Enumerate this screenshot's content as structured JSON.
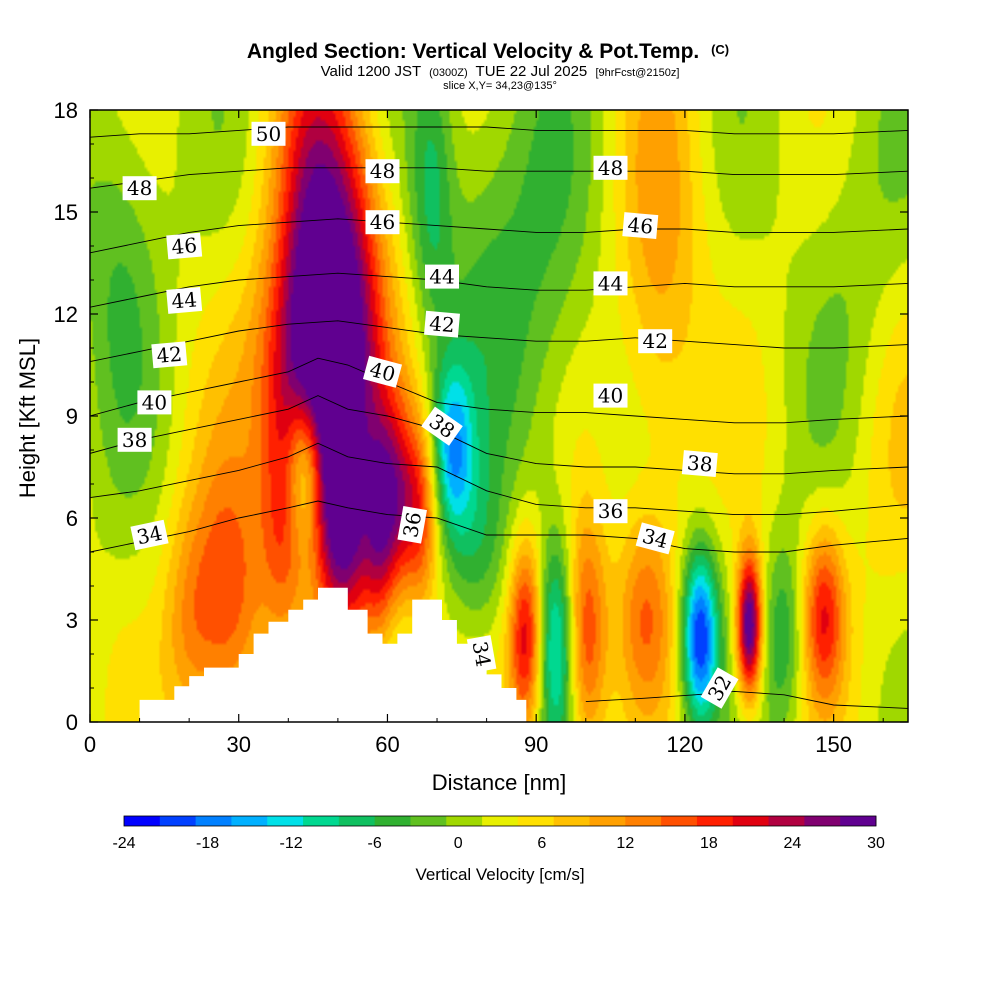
{
  "title": {
    "main": "Angled Section: Vertical Velocity & Pot.Temp.",
    "main_suffix": "(C)",
    "valid_prefix": "Valid 1200 JST",
    "valid_zulu": "(0300Z)",
    "valid_date": "TUE 22 Jul 2025",
    "forecast": "[9hrFcst@2150z]",
    "slice": "slice X,Y= 34,23@135°"
  },
  "chart_data": {
    "type": "heatmap",
    "xlabel": "Distance [nm]",
    "ylabel": "Height [Kft MSL]",
    "xlim": [
      0,
      165
    ],
    "ylim": [
      0,
      18
    ],
    "x_ticks": [
      0,
      30,
      60,
      90,
      120,
      150
    ],
    "y_ticks": [
      0,
      3,
      6,
      9,
      12,
      15,
      18
    ],
    "colorbar": {
      "title": "Vertical Velocity [cm/s]",
      "range": [
        -24,
        30
      ],
      "tick_values": [
        -24,
        -18,
        -12,
        -6,
        0,
        6,
        12,
        18,
        24,
        30
      ],
      "colors": [
        "#0000ff",
        "#0040ff",
        "#0080ff",
        "#00b0ff",
        "#00e0e8",
        "#00d890",
        "#10c060",
        "#30b030",
        "#60c020",
        "#a0d800",
        "#e8f000",
        "#ffe000",
        "#ffc000",
        "#ffa000",
        "#ff8000",
        "#ff5000",
        "#ff2000",
        "#e00010",
        "#b00040",
        "#800070",
        "#600090"
      ]
    },
    "terrain_profile": [
      [
        10,
        0
      ],
      [
        10,
        0.65
      ],
      [
        17,
        0.65
      ],
      [
        17,
        1.05
      ],
      [
        20,
        1.05
      ],
      [
        20,
        1.35
      ],
      [
        23,
        1.35
      ],
      [
        23,
        1.6
      ],
      [
        30,
        1.6
      ],
      [
        30,
        2.0
      ],
      [
        33,
        2.0
      ],
      [
        33,
        2.6
      ],
      [
        36,
        2.6
      ],
      [
        36,
        2.95
      ],
      [
        40,
        2.95
      ],
      [
        40,
        3.3
      ],
      [
        43,
        3.3
      ],
      [
        43,
        3.6
      ],
      [
        46,
        3.6
      ],
      [
        46,
        3.95
      ],
      [
        52,
        3.95
      ],
      [
        52,
        3.3
      ],
      [
        56,
        3.3
      ],
      [
        56,
        2.6
      ],
      [
        59,
        2.6
      ],
      [
        59,
        2.3
      ],
      [
        62,
        2.3
      ],
      [
        62,
        2.6
      ],
      [
        65,
        2.6
      ],
      [
        65,
        3.6
      ],
      [
        71,
        3.6
      ],
      [
        71,
        3.0
      ],
      [
        74,
        3.0
      ],
      [
        74,
        2.3
      ],
      [
        77,
        2.3
      ],
      [
        77,
        1.7
      ],
      [
        80,
        1.7
      ],
      [
        80,
        1.4
      ],
      [
        83,
        1.4
      ],
      [
        83,
        1.0
      ],
      [
        86,
        1.0
      ],
      [
        86,
        0.65
      ],
      [
        88,
        0.65
      ],
      [
        88,
        0
      ]
    ],
    "velocity_cells": [
      {
        "x": 46,
        "y": 13.5,
        "sx": 6,
        "sy": 4.5,
        "v": 24
      },
      {
        "x": 44,
        "y": 10.5,
        "sx": 8,
        "sy": 2.5,
        "v": 14
      },
      {
        "x": 54,
        "y": 12.5,
        "sx": 5,
        "sy": 3.5,
        "v": 12
      },
      {
        "x": 39,
        "y": 6,
        "sx": 3.5,
        "sy": 2.5,
        "v": 12
      },
      {
        "x": 49,
        "y": 6,
        "sx": 2.8,
        "sy": 2.5,
        "v": 18
      },
      {
        "x": 53,
        "y": 5.5,
        "sx": 2.5,
        "sy": 2.5,
        "v": 14
      },
      {
        "x": 58,
        "y": 5.5,
        "sx": 2.5,
        "sy": 2.5,
        "v": 16
      },
      {
        "x": 62,
        "y": 6.5,
        "sx": 3,
        "sy": 2,
        "v": 16
      },
      {
        "x": 67,
        "y": 6,
        "sx": 2.5,
        "sy": 2,
        "v": 12
      },
      {
        "x": 28,
        "y": 3.5,
        "sx": 5,
        "sy": 3,
        "v": 14
      },
      {
        "x": 20,
        "y": 2.8,
        "sx": 4,
        "sy": 2.5,
        "v": 8
      },
      {
        "x": 43,
        "y": 7.5,
        "sx": 2.5,
        "sy": 1.5,
        "v": -12
      },
      {
        "x": 69,
        "y": 15.5,
        "sx": 3,
        "sy": 3,
        "v": -8
      },
      {
        "x": 73,
        "y": 8,
        "sx": 3,
        "sy": 1.8,
        "v": -16
      },
      {
        "x": 78,
        "y": 5,
        "sx": 4,
        "sy": 2,
        "v": -6
      },
      {
        "x": 88,
        "y": 2.5,
        "sx": 2.5,
        "sy": 2,
        "v": 20
      },
      {
        "x": 94,
        "y": 2.3,
        "sx": 2.8,
        "sy": 2.2,
        "v": -14
      },
      {
        "x": 100,
        "y": 2.5,
        "sx": 3,
        "sy": 2.5,
        "v": 16
      },
      {
        "x": 112,
        "y": 3.2,
        "sx": 4,
        "sy": 2,
        "v": 10
      },
      {
        "x": 123,
        "y": 2.5,
        "sx": 2.6,
        "sy": 1.8,
        "v": -24
      },
      {
        "x": 133,
        "y": 2.8,
        "sx": 1.8,
        "sy": 1.5,
        "v": 30
      },
      {
        "x": 148,
        "y": 3.2,
        "sx": 3,
        "sy": 1.8,
        "v": 16
      },
      {
        "x": 140,
        "y": 2.5,
        "sx": 3,
        "sy": 2,
        "v": -8
      },
      {
        "x": 6,
        "y": 14,
        "sx": 6,
        "sy": 4,
        "v": -6
      },
      {
        "x": 90,
        "y": 13,
        "sx": 8,
        "sy": 5,
        "v": -6
      },
      {
        "x": 115,
        "y": 13,
        "sx": 6,
        "sy": 5,
        "v": 8
      },
      {
        "x": 155,
        "y": 13,
        "sx": 8,
        "sy": 5,
        "v": -4
      },
      {
        "x": 78,
        "y": 14,
        "sx": 6,
        "sy": 4,
        "v": -4
      },
      {
        "x": 160,
        "y": 8,
        "sx": 8,
        "sy": 4,
        "v": 4
      }
    ],
    "theta_contours": [
      {
        "value": 32,
        "x": [
          100,
          112,
          122,
          130,
          140,
          150,
          165
        ],
        "y": [
          0.6,
          0.7,
          0.8,
          0.9,
          0.8,
          0.5,
          0.4
        ]
      },
      {
        "value": 34,
        "x": [
          0,
          10,
          20,
          30,
          40,
          46,
          52,
          60,
          70,
          80,
          90,
          100,
          110,
          120,
          130,
          140,
          150,
          165
        ],
        "y": [
          5.0,
          5.3,
          5.6,
          6.0,
          6.3,
          6.5,
          6.3,
          6.1,
          6.0,
          5.5,
          5.5,
          5.5,
          5.4,
          5.1,
          5.0,
          5.0,
          5.2,
          5.4
        ]
      },
      {
        "value": 36,
        "x": [
          0,
          10,
          20,
          30,
          40,
          46,
          52,
          60,
          70,
          80,
          90,
          100,
          110,
          120,
          130,
          140,
          150,
          165
        ],
        "y": [
          6.6,
          6.8,
          7.1,
          7.4,
          7.8,
          8.2,
          7.8,
          7.6,
          7.5,
          6.8,
          6.4,
          6.3,
          6.3,
          6.2,
          6.1,
          6.1,
          6.2,
          6.4
        ]
      },
      {
        "value": 38,
        "x": [
          0,
          10,
          20,
          30,
          40,
          46,
          52,
          60,
          70,
          80,
          90,
          100,
          110,
          120,
          130,
          140,
          150,
          165
        ],
        "y": [
          7.9,
          8.3,
          8.6,
          8.9,
          9.2,
          9.6,
          9.2,
          9.0,
          8.6,
          7.9,
          7.6,
          7.5,
          7.5,
          7.4,
          7.3,
          7.3,
          7.4,
          7.5
        ]
      },
      {
        "value": 40,
        "x": [
          0,
          10,
          20,
          30,
          40,
          46,
          52,
          60,
          70,
          80,
          90,
          100,
          110,
          120,
          130,
          140,
          150,
          165
        ],
        "y": [
          9.0,
          9.4,
          9.7,
          10.0,
          10.3,
          10.7,
          10.5,
          10.0,
          9.4,
          9.2,
          9.1,
          9.1,
          9.0,
          8.9,
          8.8,
          8.8,
          8.9,
          9.0
        ]
      },
      {
        "value": 42,
        "x": [
          0,
          10,
          20,
          30,
          40,
          50,
          60,
          70,
          80,
          90,
          100,
          110,
          120,
          130,
          140,
          150,
          165
        ],
        "y": [
          10.6,
          10.9,
          11.2,
          11.5,
          11.7,
          11.8,
          11.6,
          11.4,
          11.3,
          11.2,
          11.2,
          11.3,
          11.2,
          11.1,
          11.0,
          11.0,
          11.1
        ]
      },
      {
        "value": 44,
        "x": [
          0,
          10,
          20,
          30,
          40,
          50,
          60,
          70,
          80,
          90,
          100,
          110,
          120,
          130,
          140,
          150,
          165
        ],
        "y": [
          12.2,
          12.5,
          12.8,
          13.0,
          13.1,
          13.2,
          13.1,
          13.0,
          12.8,
          12.7,
          12.7,
          12.8,
          12.9,
          12.8,
          12.8,
          12.8,
          12.9
        ]
      },
      {
        "value": 46,
        "x": [
          0,
          10,
          20,
          30,
          40,
          50,
          60,
          70,
          80,
          90,
          100,
          110,
          120,
          130,
          140,
          150,
          165
        ],
        "y": [
          13.8,
          14.1,
          14.4,
          14.6,
          14.7,
          14.8,
          14.7,
          14.6,
          14.5,
          14.4,
          14.4,
          14.5,
          14.5,
          14.4,
          14.4,
          14.4,
          14.5
        ]
      },
      {
        "value": 48,
        "x": [
          0,
          10,
          20,
          30,
          40,
          50,
          60,
          70,
          80,
          90,
          100,
          110,
          120,
          130,
          140,
          150,
          165
        ],
        "y": [
          15.7,
          15.9,
          16.1,
          16.2,
          16.3,
          16.3,
          16.3,
          16.3,
          16.2,
          16.2,
          16.2,
          16.2,
          16.2,
          16.1,
          16.1,
          16.1,
          16.2
        ]
      },
      {
        "value": 50,
        "x": [
          0,
          10,
          20,
          30,
          40,
          50,
          60,
          70,
          80,
          90,
          100,
          110,
          120,
          130,
          140,
          150,
          165
        ],
        "y": [
          17.2,
          17.3,
          17.3,
          17.4,
          17.5,
          17.5,
          17.5,
          17.5,
          17.5,
          17.4,
          17.4,
          17.4,
          17.4,
          17.3,
          17.3,
          17.3,
          17.4
        ]
      }
    ],
    "contour_labels": [
      {
        "text": "50",
        "x": 36,
        "y": 17.3,
        "rot": 0
      },
      {
        "text": "48",
        "x": 10,
        "y": 15.7,
        "rot": 0
      },
      {
        "text": "48",
        "x": 59,
        "y": 16.2,
        "rot": 0
      },
      {
        "text": "48",
        "x": 105,
        "y": 16.3,
        "rot": 0
      },
      {
        "text": "46",
        "x": 19,
        "y": 14.0,
        "rot": -5
      },
      {
        "text": "46",
        "x": 59,
        "y": 14.7,
        "rot": 0
      },
      {
        "text": "46",
        "x": 111,
        "y": 14.6,
        "rot": 5
      },
      {
        "text": "44",
        "x": 19,
        "y": 12.4,
        "rot": -5
      },
      {
        "text": "44",
        "x": 71,
        "y": 13.1,
        "rot": 0
      },
      {
        "text": "44",
        "x": 105,
        "y": 12.9,
        "rot": 0
      },
      {
        "text": "42",
        "x": 16,
        "y": 10.8,
        "rot": -5
      },
      {
        "text": "42",
        "x": 71,
        "y": 11.7,
        "rot": 5
      },
      {
        "text": "42",
        "x": 114,
        "y": 11.2,
        "rot": 0
      },
      {
        "text": "40",
        "x": 13,
        "y": 9.4,
        "rot": 0
      },
      {
        "text": "40",
        "x": 59,
        "y": 10.3,
        "rot": 15
      },
      {
        "text": "40",
        "x": 105,
        "y": 9.6,
        "rot": 0
      },
      {
        "text": "38",
        "x": 9,
        "y": 8.3,
        "rot": 0
      },
      {
        "text": "38",
        "x": 71,
        "y": 8.7,
        "rot": 35
      },
      {
        "text": "38",
        "x": 123,
        "y": 7.6,
        "rot": 5
      },
      {
        "text": "36",
        "x": 65,
        "y": 5.8,
        "rot": -80
      },
      {
        "text": "36",
        "x": 105,
        "y": 6.2,
        "rot": 0
      },
      {
        "text": "34",
        "x": 12,
        "y": 5.5,
        "rot": -12
      },
      {
        "text": "34",
        "x": 114,
        "y": 5.4,
        "rot": 15
      },
      {
        "text": "34",
        "x": 79,
        "y": 2.0,
        "rot": 80
      },
      {
        "text": "32",
        "x": 127,
        "y": 1.0,
        "rot": -60
      }
    ]
  }
}
